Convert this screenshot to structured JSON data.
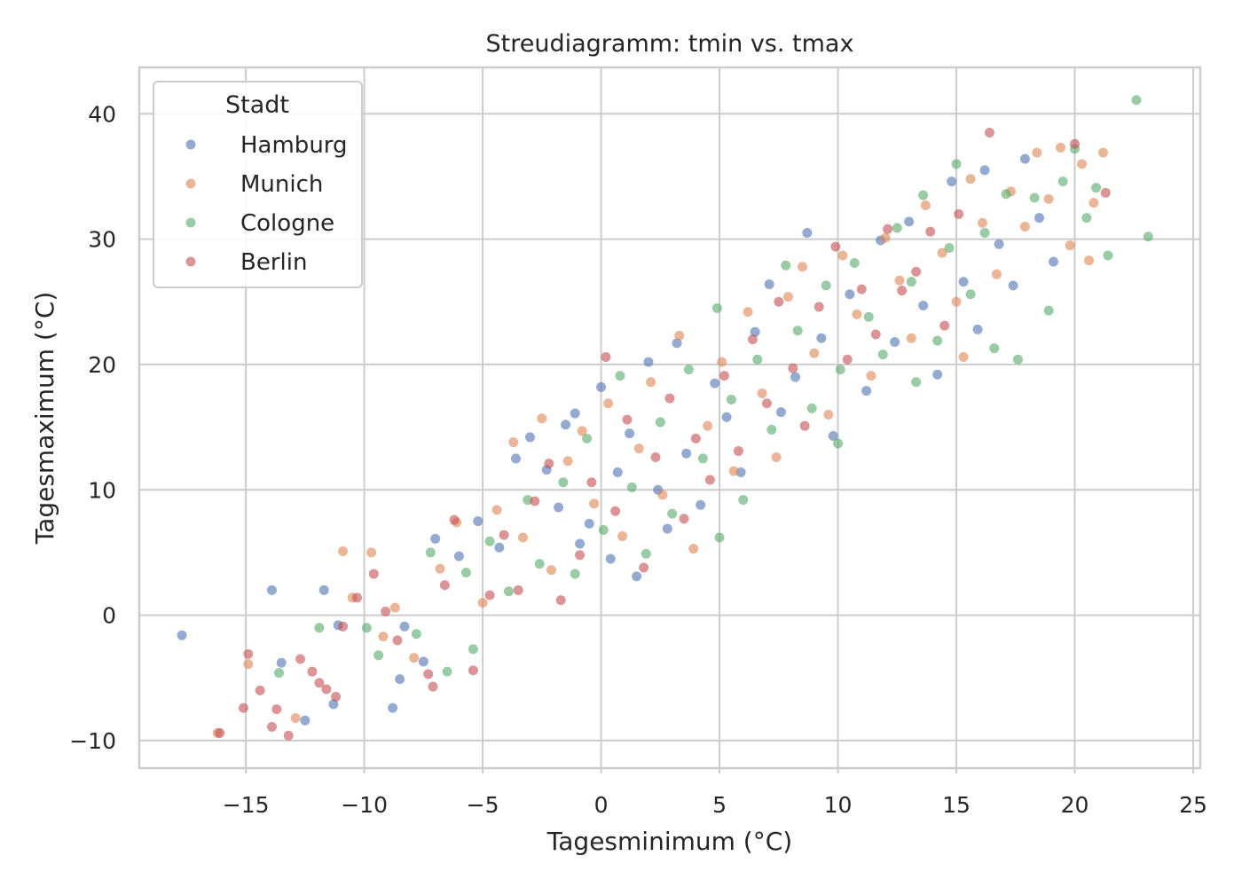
{
  "chart_data": {
    "type": "scatter",
    "title": "Streudiagramm: tmin vs. tmax",
    "xlabel": "Tagesminimum (°C)",
    "ylabel": "Tagesmaximum (°C)",
    "xlim": [
      -19.5,
      25.3
    ],
    "ylim": [
      -12.2,
      43.7
    ],
    "xticks": [
      -15,
      -10,
      -5,
      0,
      5,
      10,
      15,
      20,
      25
    ],
    "xtick_labels": [
      "−15",
      "−10",
      "−5",
      "0",
      "5",
      "10",
      "15",
      "20",
      "25"
    ],
    "yticks": [
      -10,
      0,
      10,
      20,
      30,
      40
    ],
    "ytick_labels": [
      "−10",
      "0",
      "10",
      "20",
      "30",
      "40"
    ],
    "grid": true,
    "legend": {
      "title": "Stadt",
      "placement": "top-left"
    },
    "series": [
      {
        "name": "Hamburg",
        "color": "#4C72B0",
        "points": [
          [
            -17.7,
            -1.6
          ],
          [
            -13.9,
            2.0
          ],
          [
            -13.5,
            -3.8
          ],
          [
            -12.5,
            -8.4
          ],
          [
            -11.7,
            2.0
          ],
          [
            -11.3,
            -7.1
          ],
          [
            -11.1,
            -0.8
          ],
          [
            -8.8,
            -7.4
          ],
          [
            -8.5,
            -5.1
          ],
          [
            -8.3,
            -0.9
          ],
          [
            -7.5,
            -3.7
          ],
          [
            -7.0,
            6.1
          ],
          [
            -6.0,
            4.7
          ],
          [
            -5.2,
            7.5
          ],
          [
            -4.3,
            5.4
          ],
          [
            -3.6,
            12.5
          ],
          [
            -3.0,
            14.2
          ],
          [
            -2.3,
            11.6
          ],
          [
            -1.8,
            8.6
          ],
          [
            -1.5,
            15.2
          ],
          [
            -1.1,
            16.1
          ],
          [
            -0.9,
            5.7
          ],
          [
            -0.5,
            7.3
          ],
          [
            0.0,
            18.2
          ],
          [
            0.4,
            4.5
          ],
          [
            0.7,
            11.4
          ],
          [
            1.2,
            14.5
          ],
          [
            1.5,
            3.1
          ],
          [
            2.0,
            20.2
          ],
          [
            2.4,
            10.0
          ],
          [
            2.8,
            6.9
          ],
          [
            3.2,
            21.7
          ],
          [
            3.6,
            12.9
          ],
          [
            4.2,
            8.8
          ],
          [
            4.8,
            18.5
          ],
          [
            5.3,
            15.8
          ],
          [
            5.9,
            11.4
          ],
          [
            6.5,
            22.6
          ],
          [
            7.1,
            26.4
          ],
          [
            7.6,
            16.2
          ],
          [
            8.2,
            19.0
          ],
          [
            8.7,
            30.5
          ],
          [
            9.3,
            22.1
          ],
          [
            9.8,
            14.3
          ],
          [
            10.5,
            25.6
          ],
          [
            11.2,
            17.9
          ],
          [
            11.8,
            29.9
          ],
          [
            12.4,
            21.8
          ],
          [
            13.0,
            31.4
          ],
          [
            13.6,
            24.7
          ],
          [
            14.2,
            19.2
          ],
          [
            14.8,
            34.6
          ],
          [
            15.3,
            26.6
          ],
          [
            15.9,
            22.8
          ],
          [
            16.2,
            35.5
          ],
          [
            16.8,
            29.6
          ],
          [
            17.4,
            26.3
          ],
          [
            17.9,
            36.4
          ],
          [
            18.5,
            31.7
          ],
          [
            19.1,
            28.2
          ]
        ]
      },
      {
        "name": "Munich",
        "color": "#DD8452",
        "points": [
          [
            -16.2,
            -9.4
          ],
          [
            -14.9,
            -3.9
          ],
          [
            -12.9,
            -8.2
          ],
          [
            -10.9,
            5.1
          ],
          [
            -10.5,
            1.4
          ],
          [
            -9.7,
            5.0
          ],
          [
            -9.2,
            -1.7
          ],
          [
            -8.7,
            0.6
          ],
          [
            -7.9,
            -3.4
          ],
          [
            -6.8,
            3.7
          ],
          [
            -6.1,
            7.4
          ],
          [
            -5.0,
            1.0
          ],
          [
            -4.4,
            8.4
          ],
          [
            -3.7,
            13.8
          ],
          [
            -3.3,
            6.2
          ],
          [
            -2.5,
            15.7
          ],
          [
            -2.1,
            3.6
          ],
          [
            -1.4,
            12.3
          ],
          [
            -0.8,
            14.7
          ],
          [
            -0.3,
            8.9
          ],
          [
            0.3,
            16.9
          ],
          [
            0.9,
            6.3
          ],
          [
            1.6,
            13.3
          ],
          [
            2.1,
            18.6
          ],
          [
            2.6,
            9.6
          ],
          [
            3.3,
            22.3
          ],
          [
            3.9,
            5.3
          ],
          [
            4.5,
            15.1
          ],
          [
            5.1,
            20.2
          ],
          [
            5.6,
            11.5
          ],
          [
            6.2,
            24.2
          ],
          [
            6.8,
            17.7
          ],
          [
            7.4,
            12.6
          ],
          [
            7.9,
            25.4
          ],
          [
            8.5,
            27.8
          ],
          [
            9.0,
            20.9
          ],
          [
            9.6,
            16.0
          ],
          [
            10.2,
            28.7
          ],
          [
            10.8,
            24.0
          ],
          [
            11.4,
            19.1
          ],
          [
            12.0,
            30.1
          ],
          [
            12.6,
            26.7
          ],
          [
            13.1,
            22.1
          ],
          [
            13.7,
            32.7
          ],
          [
            14.4,
            28.9
          ],
          [
            15.0,
            25.0
          ],
          [
            15.6,
            34.8
          ],
          [
            16.1,
            31.3
          ],
          [
            16.7,
            27.2
          ],
          [
            17.3,
            33.8
          ],
          [
            17.9,
            31.0
          ],
          [
            18.4,
            36.9
          ],
          [
            18.9,
            33.2
          ],
          [
            19.4,
            37.3
          ],
          [
            19.8,
            29.5
          ],
          [
            20.3,
            36.0
          ],
          [
            20.8,
            32.9
          ],
          [
            21.2,
            36.9
          ],
          [
            20.6,
            28.3
          ],
          [
            15.3,
            20.6
          ]
        ]
      },
      {
        "name": "Cologne",
        "color": "#55A868",
        "points": [
          [
            -13.6,
            -4.6
          ],
          [
            -11.9,
            -1.0
          ],
          [
            -9.9,
            -1.0
          ],
          [
            -9.4,
            -3.2
          ],
          [
            -7.8,
            -1.5
          ],
          [
            -7.2,
            5.0
          ],
          [
            -6.5,
            -4.5
          ],
          [
            -5.7,
            3.4
          ],
          [
            -5.4,
            -2.7
          ],
          [
            -4.7,
            5.9
          ],
          [
            -3.9,
            1.9
          ],
          [
            -3.1,
            9.2
          ],
          [
            -2.6,
            4.1
          ],
          [
            -1.6,
            10.6
          ],
          [
            -1.1,
            3.3
          ],
          [
            -0.6,
            14.1
          ],
          [
            0.1,
            6.8
          ],
          [
            0.8,
            19.1
          ],
          [
            1.3,
            10.2
          ],
          [
            1.9,
            4.9
          ],
          [
            2.5,
            15.4
          ],
          [
            3.0,
            8.1
          ],
          [
            3.7,
            19.6
          ],
          [
            4.3,
            12.5
          ],
          [
            4.9,
            24.5
          ],
          [
            5.5,
            17.2
          ],
          [
            6.0,
            9.2
          ],
          [
            6.6,
            20.4
          ],
          [
            7.2,
            14.8
          ],
          [
            7.8,
            27.9
          ],
          [
            8.3,
            22.7
          ],
          [
            8.9,
            16.5
          ],
          [
            9.5,
            26.3
          ],
          [
            10.1,
            19.6
          ],
          [
            10.7,
            28.1
          ],
          [
            11.3,
            23.8
          ],
          [
            11.9,
            20.8
          ],
          [
            12.5,
            30.9
          ],
          [
            13.1,
            26.6
          ],
          [
            13.6,
            33.5
          ],
          [
            14.2,
            21.9
          ],
          [
            14.7,
            29.3
          ],
          [
            15.0,
            36.0
          ],
          [
            15.6,
            25.6
          ],
          [
            16.2,
            30.5
          ],
          [
            16.6,
            21.3
          ],
          [
            17.1,
            33.6
          ],
          [
            17.6,
            20.4
          ],
          [
            18.3,
            33.3
          ],
          [
            18.9,
            24.3
          ],
          [
            19.5,
            34.6
          ],
          [
            20.0,
            37.2
          ],
          [
            20.5,
            31.7
          ],
          [
            20.9,
            34.1
          ],
          [
            21.4,
            28.7
          ],
          [
            22.6,
            41.1
          ],
          [
            23.1,
            30.2
          ],
          [
            13.3,
            18.6
          ],
          [
            10.0,
            13.7
          ],
          [
            5.0,
            6.2
          ]
        ]
      },
      {
        "name": "Berlin",
        "color": "#C44E52",
        "points": [
          [
            -16.1,
            -9.4
          ],
          [
            -15.1,
            -7.4
          ],
          [
            -14.9,
            -3.1
          ],
          [
            -14.4,
            -6.0
          ],
          [
            -13.9,
            -8.9
          ],
          [
            -13.7,
            -7.5
          ],
          [
            -13.2,
            -9.6
          ],
          [
            -12.7,
            -3.5
          ],
          [
            -12.2,
            -4.5
          ],
          [
            -11.9,
            -5.4
          ],
          [
            -11.6,
            -5.9
          ],
          [
            -11.2,
            -6.5
          ],
          [
            -10.9,
            -0.9
          ],
          [
            -10.3,
            1.4
          ],
          [
            -9.6,
            3.3
          ],
          [
            -9.1,
            0.3
          ],
          [
            -8.6,
            -2.0
          ],
          [
            -7.3,
            -4.7
          ],
          [
            -7.1,
            -5.7
          ],
          [
            -6.6,
            2.4
          ],
          [
            -6.2,
            7.6
          ],
          [
            -5.4,
            -4.4
          ],
          [
            -4.7,
            1.6
          ],
          [
            -4.1,
            6.4
          ],
          [
            -3.5,
            2.0
          ],
          [
            -2.8,
            9.1
          ],
          [
            -2.2,
            12.1
          ],
          [
            -1.7,
            1.2
          ],
          [
            -0.9,
            4.8
          ],
          [
            -0.4,
            10.6
          ],
          [
            0.2,
            20.6
          ],
          [
            0.6,
            8.3
          ],
          [
            1.1,
            15.6
          ],
          [
            1.8,
            3.8
          ],
          [
            2.3,
            12.6
          ],
          [
            2.9,
            17.3
          ],
          [
            3.5,
            7.7
          ],
          [
            4.0,
            14.1
          ],
          [
            4.6,
            10.8
          ],
          [
            5.2,
            19.1
          ],
          [
            5.8,
            13.1
          ],
          [
            6.4,
            22.0
          ],
          [
            7.0,
            16.9
          ],
          [
            7.5,
            25.0
          ],
          [
            8.1,
            19.7
          ],
          [
            8.6,
            15.1
          ],
          [
            9.2,
            24.6
          ],
          [
            9.9,
            29.4
          ],
          [
            10.4,
            20.4
          ],
          [
            11.0,
            26.0
          ],
          [
            11.6,
            22.4
          ],
          [
            12.1,
            30.8
          ],
          [
            12.7,
            25.9
          ],
          [
            13.3,
            27.4
          ],
          [
            13.9,
            30.6
          ],
          [
            14.5,
            23.1
          ],
          [
            15.1,
            32.0
          ],
          [
            16.4,
            38.5
          ],
          [
            20.0,
            37.6
          ],
          [
            21.3,
            33.7
          ]
        ]
      }
    ]
  }
}
